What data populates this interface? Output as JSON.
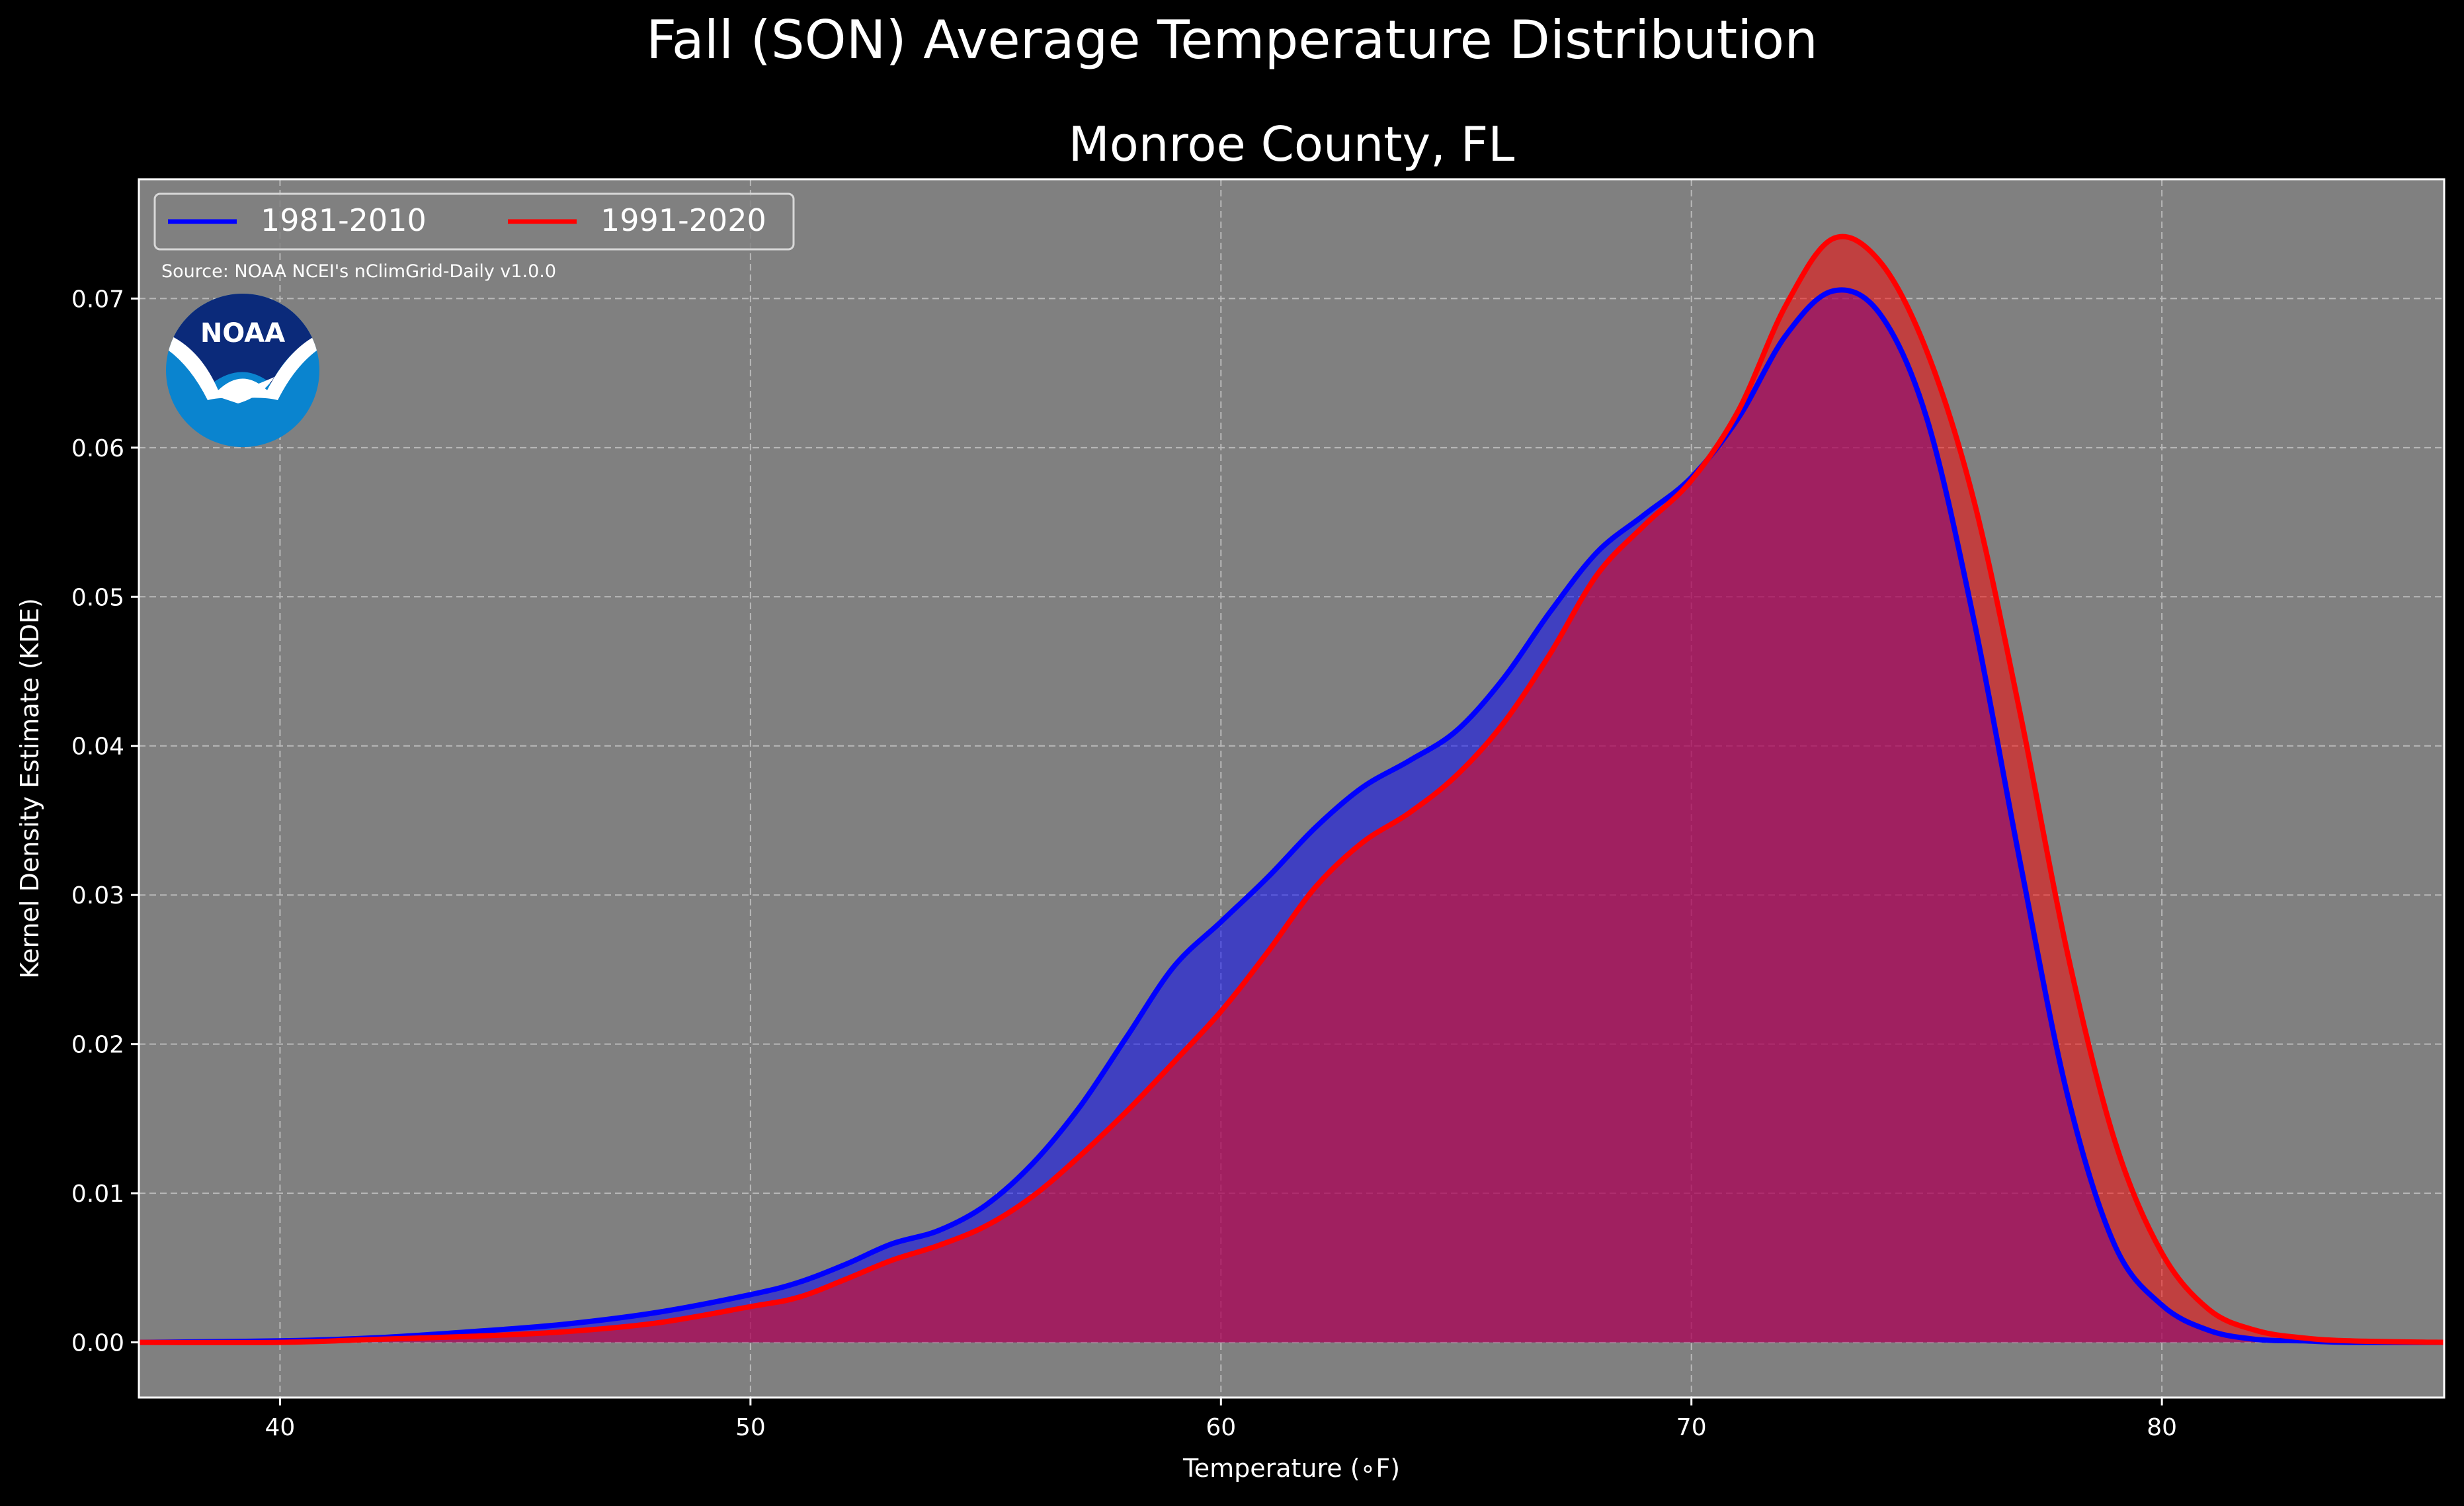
{
  "chart_data": {
    "type": "area",
    "title": "Fall (SON) Average Temperature Distribution",
    "subtitle": "Monroe County, FL",
    "xlabel": "Temperature ($^\\circ$F)",
    "xlabel_display": "Temperature (∘F)",
    "ylabel": "Kernel Density Estimate (KDE)",
    "xlim": [
      37,
      86
    ],
    "ylim": [
      -0.0037,
      0.078
    ],
    "xticks": [
      40,
      50,
      60,
      70,
      80
    ],
    "xtick_labels": [
      "40",
      "50",
      "60",
      "70",
      "80"
    ],
    "yticks": [
      0.0,
      0.01,
      0.02,
      0.03,
      0.04,
      0.05,
      0.06,
      0.07
    ],
    "ytick_labels": [
      "0.00",
      "0.01",
      "0.02",
      "0.03",
      "0.04",
      "0.05",
      "0.06",
      "0.07"
    ],
    "grid": true,
    "legend_placement": "top-left",
    "annotation": "Source: NOAA NCEI's nClimGrid-Daily v1.0.0",
    "logo_text": "NOAA",
    "series": [
      {
        "name": "1981-2010",
        "color": "#0000ff",
        "fill": "#0000ff",
        "x": [
          37,
          40,
          42,
          44,
          46,
          48,
          50,
          51,
          52,
          53,
          54,
          55,
          56,
          57,
          58,
          59,
          60,
          61,
          62,
          63,
          64,
          65,
          66,
          67,
          68,
          69,
          70,
          71,
          72,
          73,
          74,
          75,
          76,
          77,
          78,
          79,
          80,
          81,
          82,
          83,
          84,
          86
        ],
        "y": [
          0.0,
          0.0001,
          0.0003,
          0.0007,
          0.0012,
          0.002,
          0.0032,
          0.004,
          0.0052,
          0.0066,
          0.0075,
          0.0092,
          0.012,
          0.0158,
          0.0205,
          0.0252,
          0.0282,
          0.0312,
          0.0345,
          0.0372,
          0.039,
          0.041,
          0.0445,
          0.049,
          0.053,
          0.0555,
          0.058,
          0.062,
          0.0675,
          0.0705,
          0.069,
          0.062,
          0.0485,
          0.032,
          0.0165,
          0.0065,
          0.0025,
          0.0008,
          0.0002,
          0.0001,
          0.0,
          0.0
        ]
      },
      {
        "name": "1991-2020",
        "color": "#ff0000",
        "fill": "#ff0000",
        "x": [
          37,
          40,
          42,
          44,
          46,
          48,
          50,
          51,
          52,
          53,
          54,
          55,
          56,
          57,
          58,
          59,
          60,
          61,
          62,
          63,
          64,
          65,
          66,
          67,
          68,
          69,
          70,
          71,
          72,
          73,
          74,
          75,
          76,
          77,
          78,
          79,
          80,
          81,
          82,
          83,
          84,
          86
        ],
        "y": [
          0.0,
          0.0,
          0.0002,
          0.0004,
          0.0007,
          0.0013,
          0.0024,
          0.003,
          0.0042,
          0.0055,
          0.0065,
          0.0078,
          0.0098,
          0.0125,
          0.0155,
          0.0188,
          0.0222,
          0.0262,
          0.0305,
          0.0335,
          0.0355,
          0.038,
          0.0415,
          0.0462,
          0.0515,
          0.0548,
          0.0578,
          0.0625,
          0.0695,
          0.074,
          0.0725,
          0.0665,
          0.0565,
          0.042,
          0.026,
          0.0135,
          0.006,
          0.0022,
          0.0008,
          0.0003,
          0.0001,
          0.0
        ]
      }
    ]
  }
}
